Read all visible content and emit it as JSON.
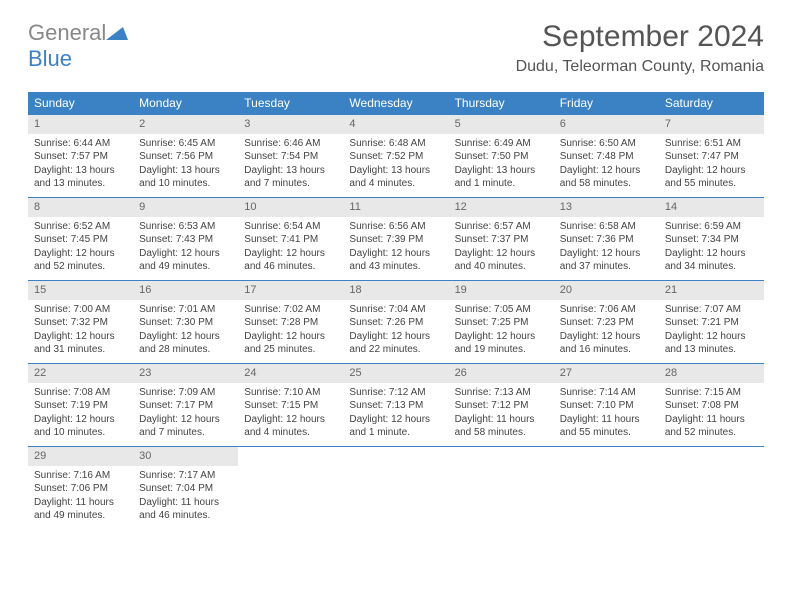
{
  "logo": {
    "word1": "General",
    "word2": "Blue"
  },
  "title": "September 2024",
  "location": "Dudu, Teleorman County, Romania",
  "colors": {
    "header_bg": "#3b82c4",
    "daynum_bg": "#e8e8e8",
    "text": "#444444",
    "title_color": "#555555",
    "logo_gray": "#888888",
    "logo_blue": "#3b82c4"
  },
  "day_names": [
    "Sunday",
    "Monday",
    "Tuesday",
    "Wednesday",
    "Thursday",
    "Friday",
    "Saturday"
  ],
  "weeks": [
    [
      {
        "n": "1",
        "sr": "Sunrise: 6:44 AM",
        "ss": "Sunset: 7:57 PM",
        "d1": "Daylight: 13 hours",
        "d2": "and 13 minutes."
      },
      {
        "n": "2",
        "sr": "Sunrise: 6:45 AM",
        "ss": "Sunset: 7:56 PM",
        "d1": "Daylight: 13 hours",
        "d2": "and 10 minutes."
      },
      {
        "n": "3",
        "sr": "Sunrise: 6:46 AM",
        "ss": "Sunset: 7:54 PM",
        "d1": "Daylight: 13 hours",
        "d2": "and 7 minutes."
      },
      {
        "n": "4",
        "sr": "Sunrise: 6:48 AM",
        "ss": "Sunset: 7:52 PM",
        "d1": "Daylight: 13 hours",
        "d2": "and 4 minutes."
      },
      {
        "n": "5",
        "sr": "Sunrise: 6:49 AM",
        "ss": "Sunset: 7:50 PM",
        "d1": "Daylight: 13 hours",
        "d2": "and 1 minute."
      },
      {
        "n": "6",
        "sr": "Sunrise: 6:50 AM",
        "ss": "Sunset: 7:48 PM",
        "d1": "Daylight: 12 hours",
        "d2": "and 58 minutes."
      },
      {
        "n": "7",
        "sr": "Sunrise: 6:51 AM",
        "ss": "Sunset: 7:47 PM",
        "d1": "Daylight: 12 hours",
        "d2": "and 55 minutes."
      }
    ],
    [
      {
        "n": "8",
        "sr": "Sunrise: 6:52 AM",
        "ss": "Sunset: 7:45 PM",
        "d1": "Daylight: 12 hours",
        "d2": "and 52 minutes."
      },
      {
        "n": "9",
        "sr": "Sunrise: 6:53 AM",
        "ss": "Sunset: 7:43 PM",
        "d1": "Daylight: 12 hours",
        "d2": "and 49 minutes."
      },
      {
        "n": "10",
        "sr": "Sunrise: 6:54 AM",
        "ss": "Sunset: 7:41 PM",
        "d1": "Daylight: 12 hours",
        "d2": "and 46 minutes."
      },
      {
        "n": "11",
        "sr": "Sunrise: 6:56 AM",
        "ss": "Sunset: 7:39 PM",
        "d1": "Daylight: 12 hours",
        "d2": "and 43 minutes."
      },
      {
        "n": "12",
        "sr": "Sunrise: 6:57 AM",
        "ss": "Sunset: 7:37 PM",
        "d1": "Daylight: 12 hours",
        "d2": "and 40 minutes."
      },
      {
        "n": "13",
        "sr": "Sunrise: 6:58 AM",
        "ss": "Sunset: 7:36 PM",
        "d1": "Daylight: 12 hours",
        "d2": "and 37 minutes."
      },
      {
        "n": "14",
        "sr": "Sunrise: 6:59 AM",
        "ss": "Sunset: 7:34 PM",
        "d1": "Daylight: 12 hours",
        "d2": "and 34 minutes."
      }
    ],
    [
      {
        "n": "15",
        "sr": "Sunrise: 7:00 AM",
        "ss": "Sunset: 7:32 PM",
        "d1": "Daylight: 12 hours",
        "d2": "and 31 minutes."
      },
      {
        "n": "16",
        "sr": "Sunrise: 7:01 AM",
        "ss": "Sunset: 7:30 PM",
        "d1": "Daylight: 12 hours",
        "d2": "and 28 minutes."
      },
      {
        "n": "17",
        "sr": "Sunrise: 7:02 AM",
        "ss": "Sunset: 7:28 PM",
        "d1": "Daylight: 12 hours",
        "d2": "and 25 minutes."
      },
      {
        "n": "18",
        "sr": "Sunrise: 7:04 AM",
        "ss": "Sunset: 7:26 PM",
        "d1": "Daylight: 12 hours",
        "d2": "and 22 minutes."
      },
      {
        "n": "19",
        "sr": "Sunrise: 7:05 AM",
        "ss": "Sunset: 7:25 PM",
        "d1": "Daylight: 12 hours",
        "d2": "and 19 minutes."
      },
      {
        "n": "20",
        "sr": "Sunrise: 7:06 AM",
        "ss": "Sunset: 7:23 PM",
        "d1": "Daylight: 12 hours",
        "d2": "and 16 minutes."
      },
      {
        "n": "21",
        "sr": "Sunrise: 7:07 AM",
        "ss": "Sunset: 7:21 PM",
        "d1": "Daylight: 12 hours",
        "d2": "and 13 minutes."
      }
    ],
    [
      {
        "n": "22",
        "sr": "Sunrise: 7:08 AM",
        "ss": "Sunset: 7:19 PM",
        "d1": "Daylight: 12 hours",
        "d2": "and 10 minutes."
      },
      {
        "n": "23",
        "sr": "Sunrise: 7:09 AM",
        "ss": "Sunset: 7:17 PM",
        "d1": "Daylight: 12 hours",
        "d2": "and 7 minutes."
      },
      {
        "n": "24",
        "sr": "Sunrise: 7:10 AM",
        "ss": "Sunset: 7:15 PM",
        "d1": "Daylight: 12 hours",
        "d2": "and 4 minutes."
      },
      {
        "n": "25",
        "sr": "Sunrise: 7:12 AM",
        "ss": "Sunset: 7:13 PM",
        "d1": "Daylight: 12 hours",
        "d2": "and 1 minute."
      },
      {
        "n": "26",
        "sr": "Sunrise: 7:13 AM",
        "ss": "Sunset: 7:12 PM",
        "d1": "Daylight: 11 hours",
        "d2": "and 58 minutes."
      },
      {
        "n": "27",
        "sr": "Sunrise: 7:14 AM",
        "ss": "Sunset: 7:10 PM",
        "d1": "Daylight: 11 hours",
        "d2": "and 55 minutes."
      },
      {
        "n": "28",
        "sr": "Sunrise: 7:15 AM",
        "ss": "Sunset: 7:08 PM",
        "d1": "Daylight: 11 hours",
        "d2": "and 52 minutes."
      }
    ],
    [
      {
        "n": "29",
        "sr": "Sunrise: 7:16 AM",
        "ss": "Sunset: 7:06 PM",
        "d1": "Daylight: 11 hours",
        "d2": "and 49 minutes."
      },
      {
        "n": "30",
        "sr": "Sunrise: 7:17 AM",
        "ss": "Sunset: 7:04 PM",
        "d1": "Daylight: 11 hours",
        "d2": "and 46 minutes."
      },
      null,
      null,
      null,
      null,
      null
    ]
  ]
}
